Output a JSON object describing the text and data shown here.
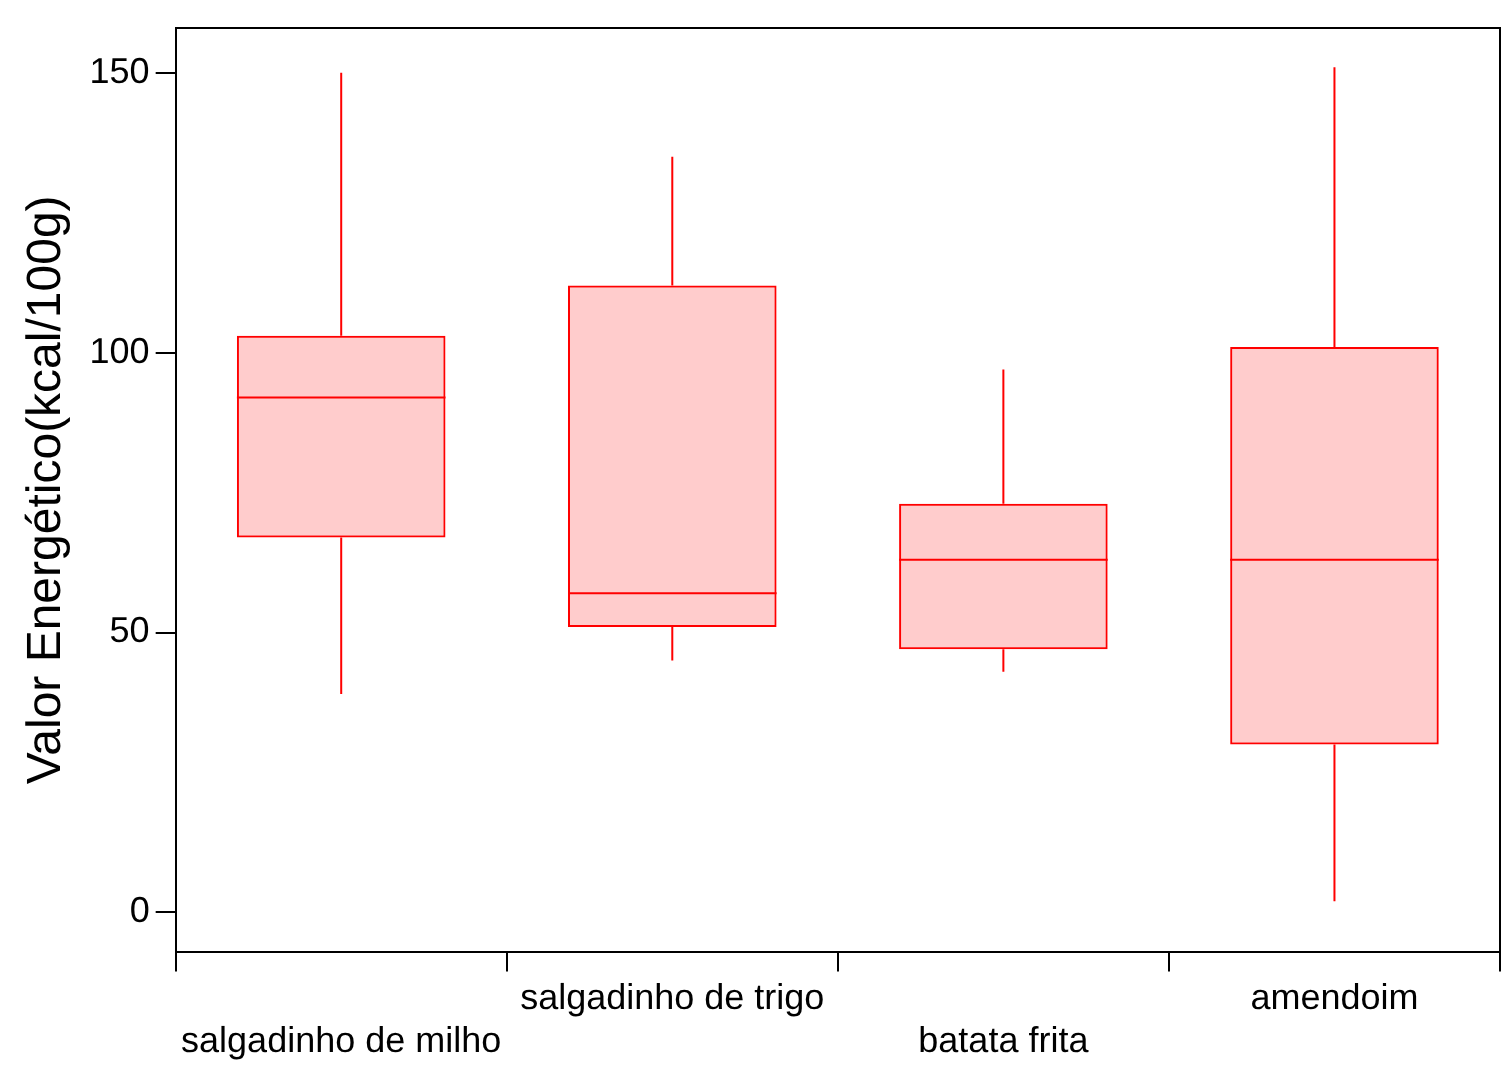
{
  "chart_data": {
    "type": "box",
    "ylabel": "Valor Energético(kcal/100g)",
    "categories": [
      "salgadinho de milho",
      "salgadinho de trigo",
      "batata frita",
      "amendoim"
    ],
    "color": "#ff0000",
    "boxes": [
      {
        "low": 39,
        "q1": 67,
        "median": 92,
        "q3": 103,
        "high": 150
      },
      {
        "low": 45,
        "q1": 51,
        "median": 57,
        "q3": 112,
        "high": 135
      },
      {
        "low": 43,
        "q1": 47,
        "median": 63,
        "q3": 73,
        "high": 97
      },
      {
        "low": 2,
        "q1": 30,
        "median": 63,
        "q3": 101,
        "high": 151
      }
    ],
    "ylim": [
      -7,
      158
    ],
    "yticks": [
      0,
      50,
      100,
      150
    ],
    "grid": false,
    "legend": false
  }
}
